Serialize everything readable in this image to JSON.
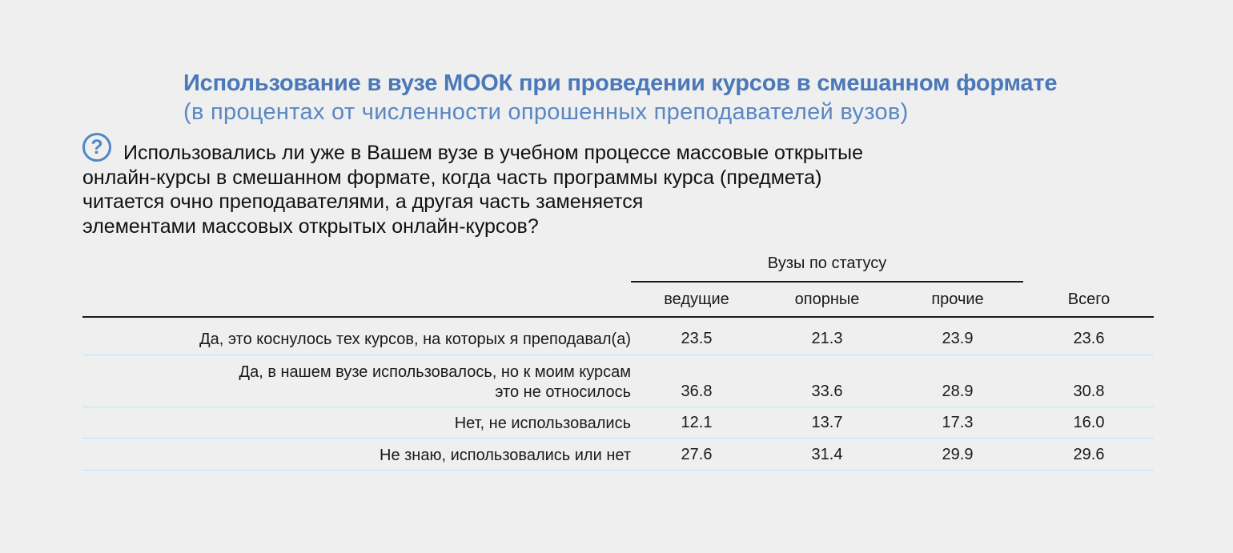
{
  "title": "Использование в вузе МООК при проведении курсов в смешанном формате",
  "subtitle": "(в процентах от численности опрошенных преподавателей вузов)",
  "question_icon": "?",
  "question_lines": [
    "Использовались ли уже в Вашем вузе в учебном процессе массовые открытые",
    "онлайн-курсы в смешанном формате, когда часть программы курса (предмета)",
    "читается очно преподавателями, а другая часть заменяется",
    "элементами массовых открытых онлайн-курсов?"
  ],
  "table": {
    "group_header": "Вузы по статусу",
    "columns": [
      "ведущие",
      "опорные",
      "прочие",
      "Всего"
    ],
    "rows": [
      {
        "label_lines": [
          "Да, это коснулось тех курсов, на которых я преподавал(а)"
        ],
        "values": [
          "23.5",
          "21.3",
          "23.9",
          "23.6"
        ]
      },
      {
        "label_lines": [
          "Да, в нашем вузе использовалось, но к моим курсам",
          "это не относилось"
        ],
        "values": [
          "36.8",
          "33.6",
          "28.9",
          "30.8"
        ]
      },
      {
        "label_lines": [
          "Нет, не использовались"
        ],
        "values": [
          "12.1",
          "13.7",
          "17.3",
          "16.0"
        ]
      },
      {
        "label_lines": [
          "Не знаю, использовались или нет"
        ],
        "values": [
          "27.6",
          "31.4",
          "29.9",
          "29.6"
        ]
      }
    ]
  },
  "colors": {
    "title": "#4a78b8",
    "subtitle": "#5a87c4",
    "icon": "#4f86c6",
    "row_divider": "#bfe0f2",
    "background": "#efefef"
  }
}
